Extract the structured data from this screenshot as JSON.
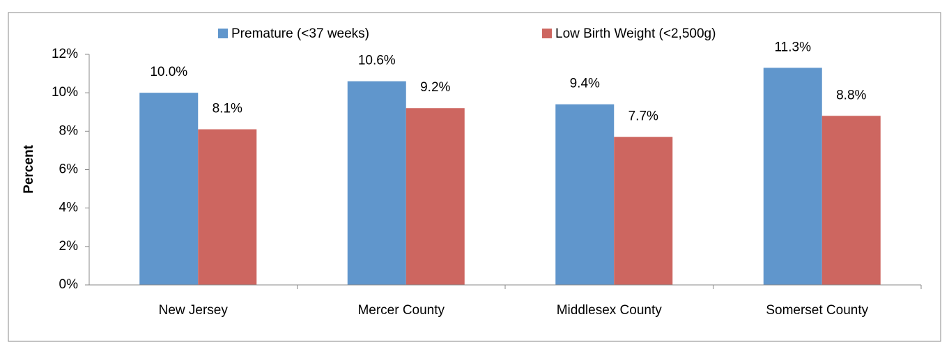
{
  "chart_data": {
    "type": "bar",
    "categories": [
      "New Jersey",
      "Mercer County",
      "Middlesex County",
      "Somerset County"
    ],
    "series": [
      {
        "name": "Premature (<37 weeks)",
        "color": "#6096cc",
        "values": [
          10.0,
          10.6,
          9.4,
          11.3
        ],
        "value_labels": [
          "10.0%",
          "10.6%",
          "9.4%",
          "11.3%"
        ]
      },
      {
        "name": "Low Birth Weight (<2,500g)",
        "color": "#cd6660",
        "values": [
          8.1,
          9.2,
          7.7,
          8.8
        ],
        "value_labels": [
          "8.1%",
          "9.2%",
          "7.7%",
          "8.8%"
        ]
      }
    ],
    "y_label": "Percent",
    "ylim": [
      0,
      12
    ],
    "yticks": [
      {
        "value": 0,
        "label": "0%"
      },
      {
        "value": 2,
        "label": "2%"
      },
      {
        "value": 4,
        "label": "4%"
      },
      {
        "value": 6,
        "label": "6%"
      },
      {
        "value": 8,
        "label": "8%"
      },
      {
        "value": 10,
        "label": "10%"
      },
      {
        "value": 12,
        "label": "12%"
      }
    ],
    "legend": "top"
  }
}
